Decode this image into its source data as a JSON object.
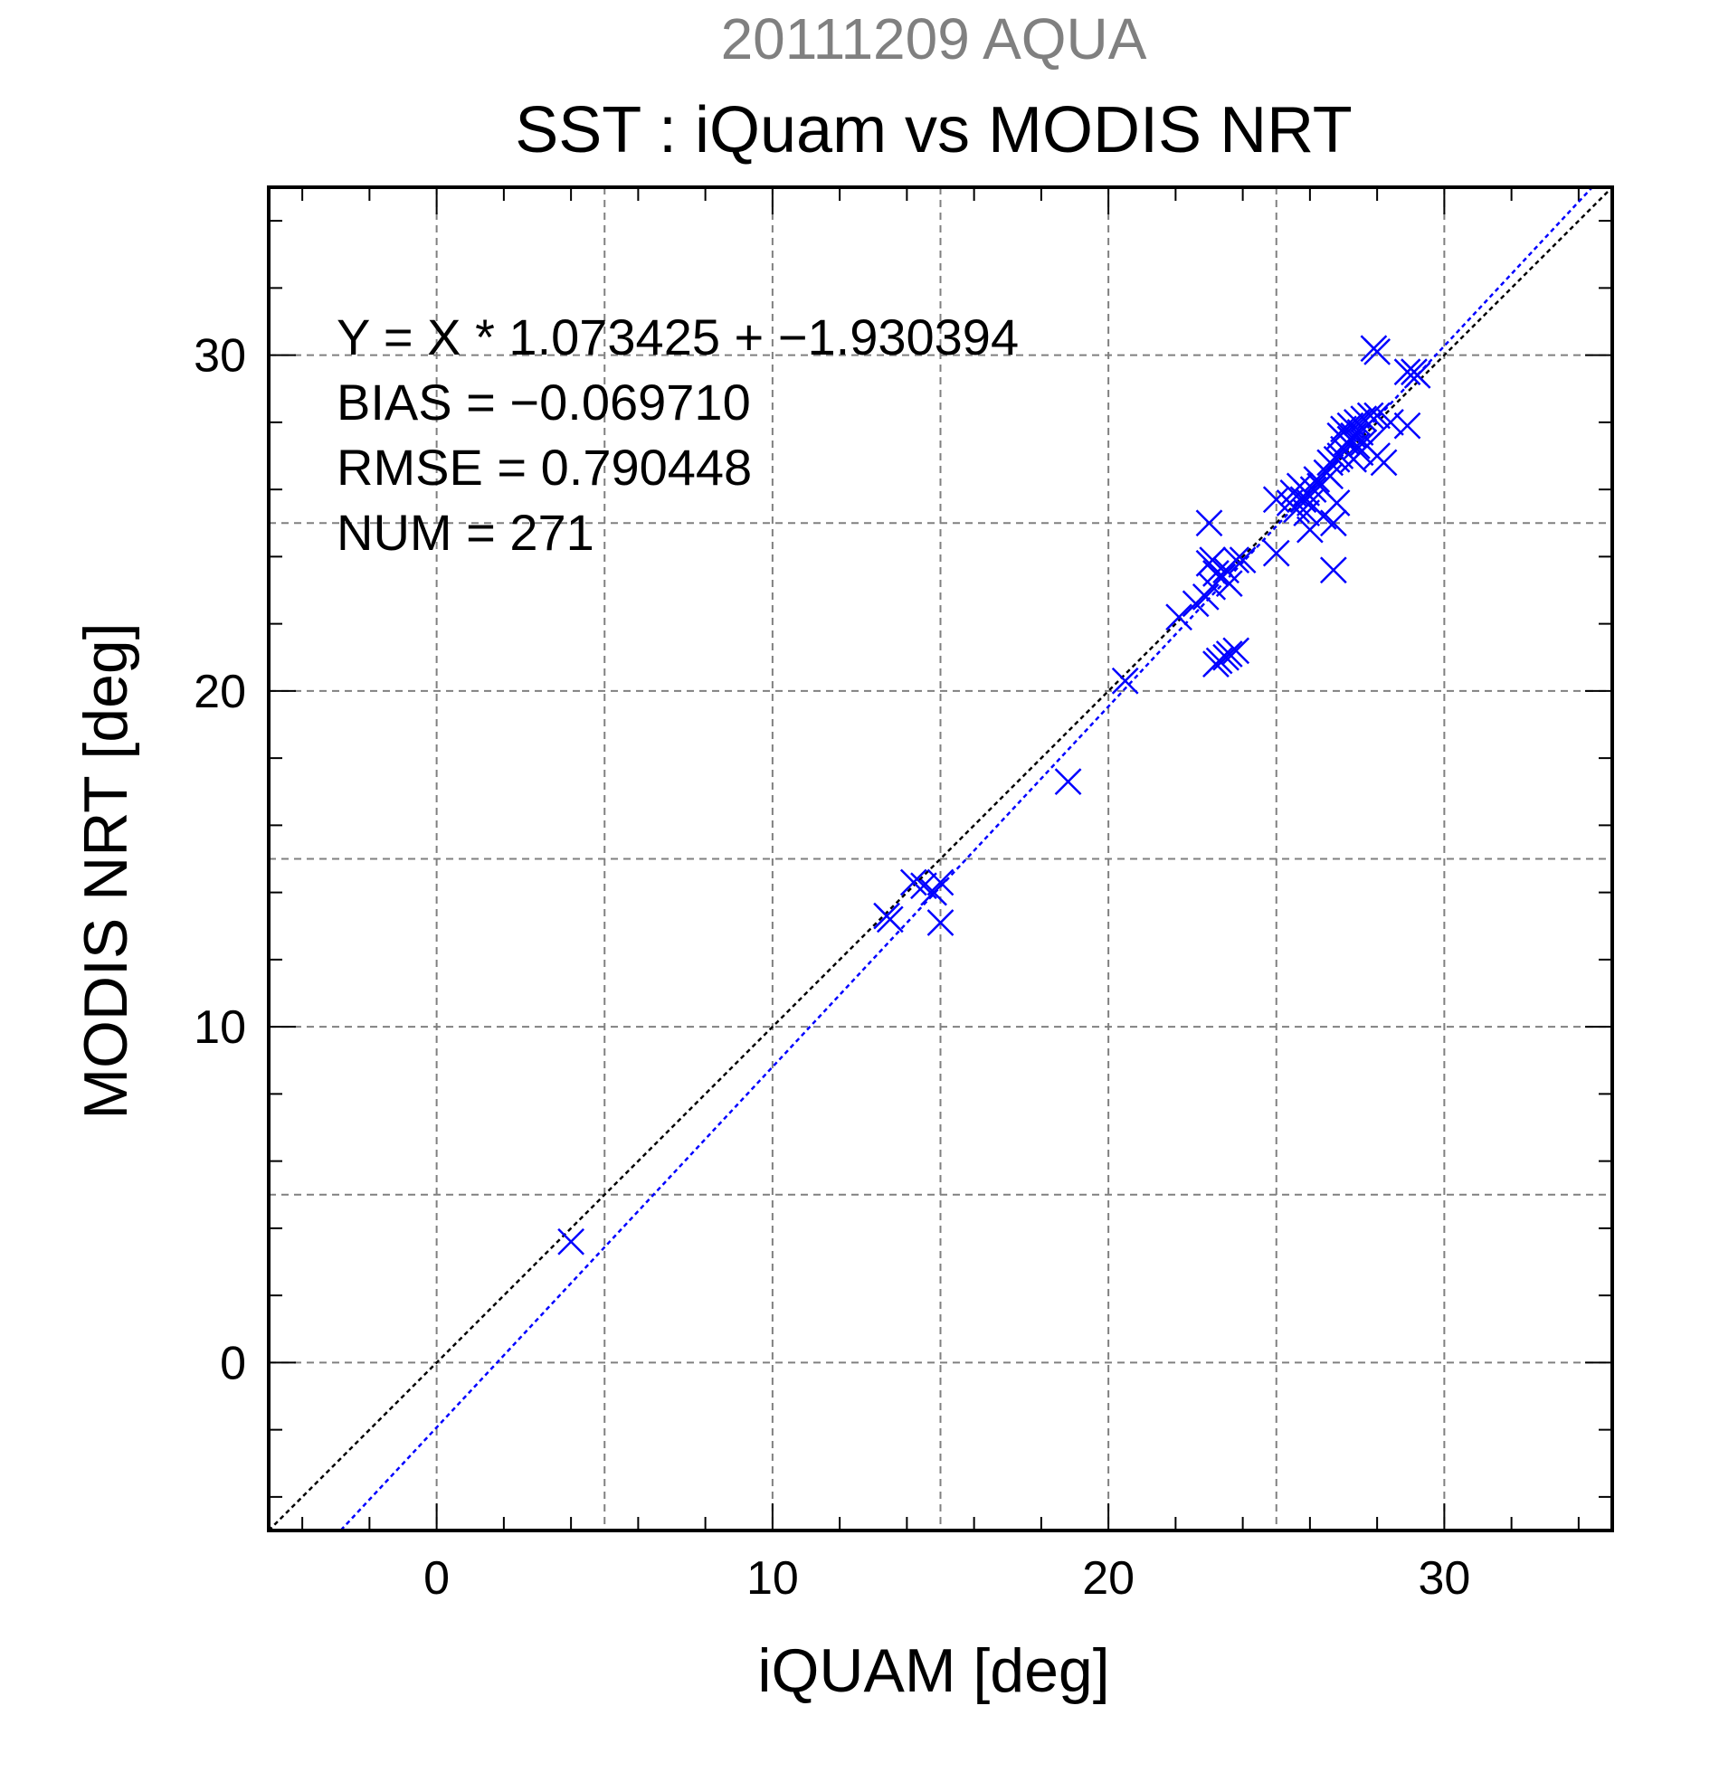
{
  "supertitle": "20111209 AQUA",
  "chart_data": {
    "type": "scatter",
    "title": "SST : iQuam vs MODIS NRT",
    "xlabel": "iQUAM [deg]",
    "ylabel": "MODIS NRT [deg]",
    "xlim": [
      -5,
      35
    ],
    "ylim": [
      -5,
      35
    ],
    "xticks": [
      0,
      10,
      20,
      30
    ],
    "yticks": [
      0,
      10,
      20,
      30
    ],
    "grid": true,
    "marker": "x",
    "colors": {
      "points": "#0000ff",
      "fit_line": "#0000ff",
      "identity_line": "#000000",
      "grid": "#808080",
      "supertitle": "#808080"
    },
    "stats": [
      "Y = X * 1.073425 + −1.930394",
      "BIAS = −0.069710",
      "RMSE = 0.790448",
      "NUM = 271"
    ],
    "fit": {
      "slope": 1.073425,
      "intercept": -1.930394
    },
    "identity": {
      "slope": 1,
      "intercept": 0
    },
    "points": [
      [
        4.0,
        3.6
      ],
      [
        13.4,
        13.3
      ],
      [
        13.5,
        13.2
      ],
      [
        14.2,
        14.3
      ],
      [
        14.5,
        14.2
      ],
      [
        14.8,
        14.0
      ],
      [
        15.0,
        14.3
      ],
      [
        15.0,
        13.1
      ],
      [
        18.8,
        17.3
      ],
      [
        20.5,
        20.3
      ],
      [
        22.1,
        22.2
      ],
      [
        22.6,
        22.6
      ],
      [
        22.9,
        22.8
      ],
      [
        23.1,
        23.1
      ],
      [
        23.4,
        23.4
      ],
      [
        23.6,
        23.2
      ],
      [
        23.0,
        23.8
      ],
      [
        23.2,
        23.5
      ],
      [
        23.5,
        23.6
      ],
      [
        23.1,
        23.9
      ],
      [
        23.8,
        23.9
      ],
      [
        23.0,
        25.0
      ],
      [
        24.0,
        23.9
      ],
      [
        23.2,
        20.8
      ],
      [
        23.3,
        20.9
      ],
      [
        23.5,
        21.0
      ],
      [
        23.6,
        21.1
      ],
      [
        23.8,
        21.2
      ],
      [
        25.0,
        24.1
      ],
      [
        25.0,
        25.7
      ],
      [
        25.4,
        25.6
      ],
      [
        25.6,
        25.4
      ],
      [
        25.8,
        25.7
      ],
      [
        25.9,
        25.9
      ],
      [
        26.0,
        25.6
      ],
      [
        26.1,
        26.0
      ],
      [
        26.2,
        26.3
      ],
      [
        26.3,
        26.1
      ],
      [
        26.5,
        26.5
      ],
      [
        26.6,
        26.4
      ],
      [
        25.5,
        25.9
      ],
      [
        25.7,
        26.1
      ],
      [
        25.9,
        25.3
      ],
      [
        26.0,
        24.8
      ],
      [
        26.4,
        25.2
      ],
      [
        26.7,
        25.0
      ],
      [
        26.8,
        25.6
      ],
      [
        26.7,
        23.6
      ],
      [
        26.6,
        26.8
      ],
      [
        26.8,
        26.9
      ],
      [
        26.9,
        27.0
      ],
      [
        27.0,
        27.2
      ],
      [
        27.1,
        27.4
      ],
      [
        27.2,
        27.5
      ],
      [
        27.3,
        27.6
      ],
      [
        27.4,
        27.3
      ],
      [
        27.5,
        27.7
      ],
      [
        27.6,
        27.4
      ],
      [
        26.9,
        27.6
      ],
      [
        27.0,
        27.8
      ],
      [
        27.2,
        27.9
      ],
      [
        27.4,
        28.0
      ],
      [
        27.6,
        28.1
      ],
      [
        27.8,
        28.2
      ],
      [
        28.0,
        28.2
      ],
      [
        27.5,
        27.1
      ],
      [
        27.7,
        27.3
      ],
      [
        27.3,
        26.9
      ],
      [
        27.9,
        30.2
      ],
      [
        28.0,
        30.1
      ],
      [
        28.9,
        29.5
      ],
      [
        29.1,
        29.5
      ],
      [
        29.2,
        29.4
      ],
      [
        28.4,
        28.0
      ],
      [
        28.9,
        27.9
      ],
      [
        28.2,
        26.8
      ],
      [
        28.0,
        27.0
      ]
    ]
  }
}
